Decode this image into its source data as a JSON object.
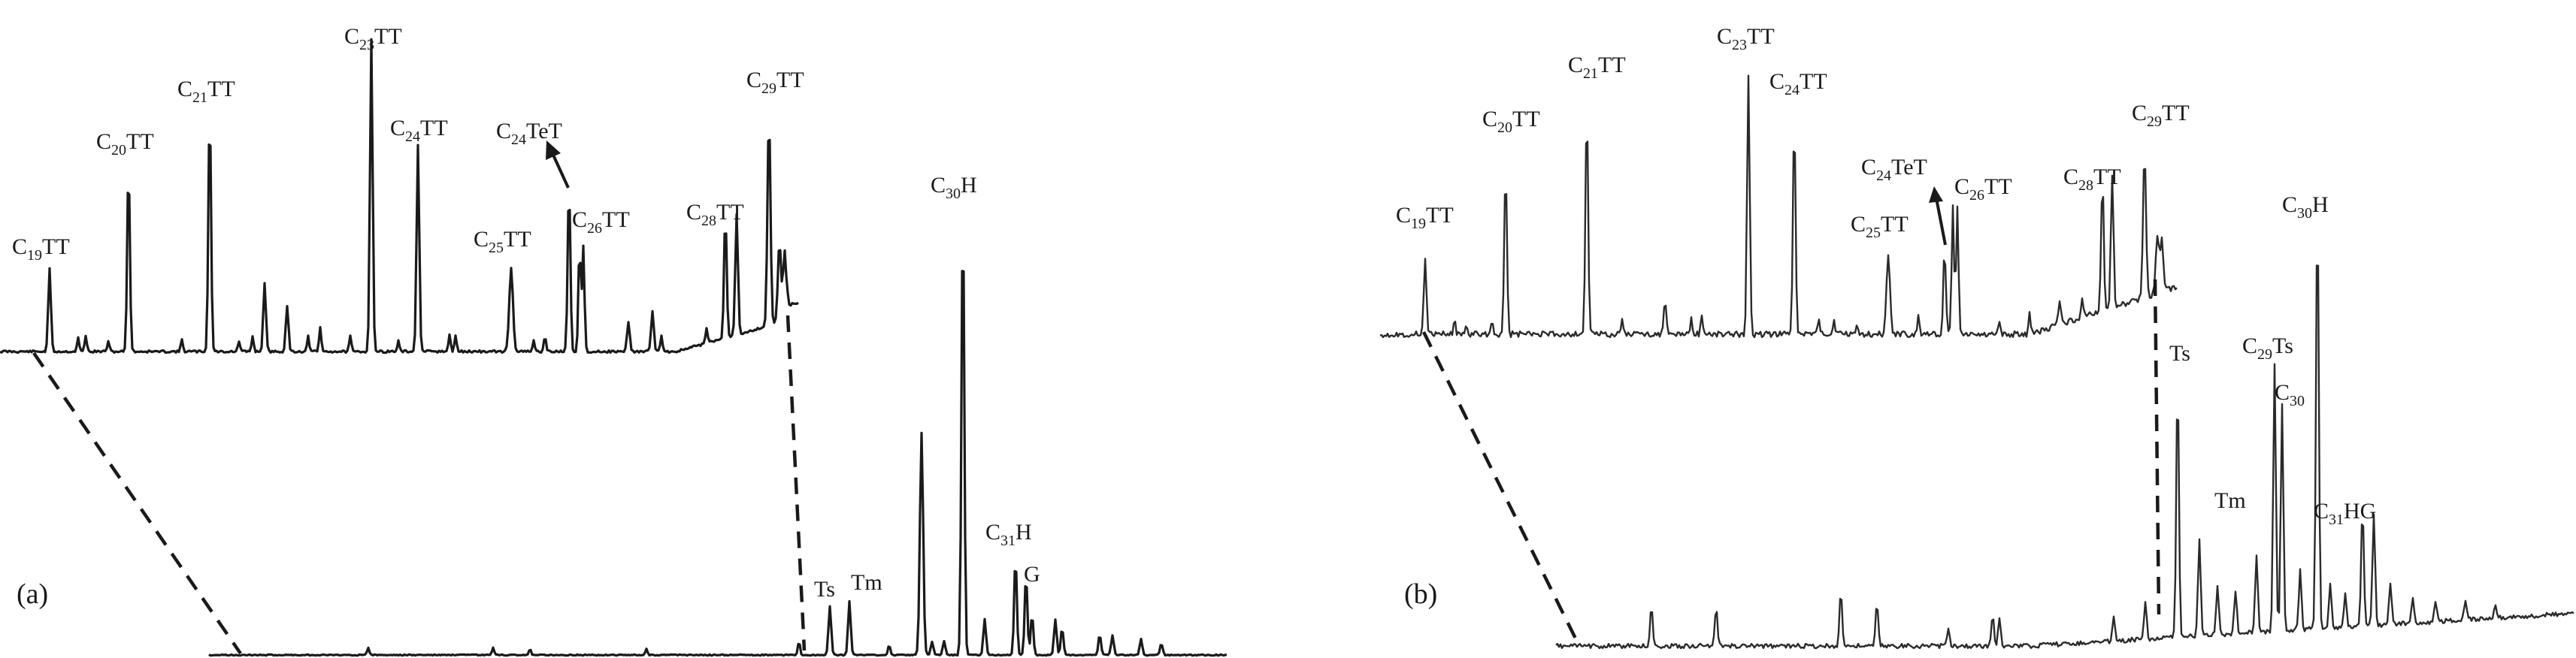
{
  "figure": {
    "panels": [
      {
        "id": "a",
        "label": "(a)",
        "inset_labels": [
          {
            "main": "C",
            "sub": "19",
            "tail": "TT"
          },
          {
            "main": "C",
            "sub": "20",
            "tail": "TT"
          },
          {
            "main": "C",
            "sub": "21",
            "tail": "TT"
          },
          {
            "main": "C",
            "sub": "23",
            "tail": "TT"
          },
          {
            "main": "C",
            "sub": "24",
            "tail": "TT"
          },
          {
            "main": "C",
            "sub": "24",
            "tail": "TeT"
          },
          {
            "main": "C",
            "sub": "25",
            "tail": "TT"
          },
          {
            "main": "C",
            "sub": "26",
            "tail": "TT"
          },
          {
            "main": "C",
            "sub": "28",
            "tail": "TT"
          },
          {
            "main": "C",
            "sub": "29",
            "tail": "TT"
          }
        ],
        "main_labels": [
          {
            "main": "C",
            "sub": "30",
            "tail": "H"
          },
          {
            "main": "C",
            "sub": "31",
            "tail": "H"
          },
          {
            "main": "",
            "sub": "",
            "tail": "Ts"
          },
          {
            "main": "",
            "sub": "",
            "tail": "Tm"
          },
          {
            "main": "",
            "sub": "",
            "tail": "G"
          }
        ]
      },
      {
        "id": "b",
        "label": "(b)",
        "inset_labels": [
          {
            "main": "C",
            "sub": "19",
            "tail": "TT"
          },
          {
            "main": "C",
            "sub": "20",
            "tail": "TT"
          },
          {
            "main": "C",
            "sub": "21",
            "tail": "TT"
          },
          {
            "main": "C",
            "sub": "23",
            "tail": "TT"
          },
          {
            "main": "C",
            "sub": "24",
            "tail": "TT"
          },
          {
            "main": "C",
            "sub": "24",
            "tail": "TeT"
          },
          {
            "main": "C",
            "sub": "25",
            "tail": "TT"
          },
          {
            "main": "C",
            "sub": "26",
            "tail": "TT"
          },
          {
            "main": "C",
            "sub": "28",
            "tail": "TT"
          },
          {
            "main": "C",
            "sub": "29",
            "tail": "TT"
          }
        ],
        "main_labels": [
          {
            "main": "",
            "sub": "",
            "tail": "Ts"
          },
          {
            "main": "C",
            "sub": "29",
            "tail": "Ts"
          },
          {
            "main": "C",
            "sub": "30",
            "tail": "H"
          },
          {
            "main": "C",
            "sub": "30",
            "tail": ""
          },
          {
            "main": "",
            "sub": "",
            "tail": "Tm"
          },
          {
            "main": "C",
            "sub": "31",
            "tail": "HG"
          }
        ]
      }
    ]
  },
  "chart_data": [
    {
      "type": "line",
      "title": "",
      "panel": "(a)",
      "xlabel": "",
      "ylabel": "",
      "grid": false,
      "axes_visible": false,
      "inset_relative_heights": [
        {
          "peak": "C19TT",
          "value": 0.26
        },
        {
          "peak": "C20TT",
          "value": 0.58
        },
        {
          "peak": "C21TT",
          "value": 0.76
        },
        {
          "peak": "C23TT",
          "value": 0.98
        },
        {
          "peak": "C24TT",
          "value": 0.65
        },
        {
          "peak": "C24TeT",
          "value": 0.52
        },
        {
          "peak": "C25TT",
          "value": 0.26
        },
        {
          "peak": "C26TT",
          "value": 0.33
        },
        {
          "peak": "C28TT",
          "value": 0.38
        },
        {
          "peak": "C29TT",
          "value": 0.66
        }
      ],
      "main_relative_heights": [
        {
          "peak": "Ts",
          "value": 0.11
        },
        {
          "peak": "Tm",
          "value": 0.12
        },
        {
          "peak": "C30H",
          "value": 1.0
        },
        {
          "peak": "C31H",
          "value": 0.22
        },
        {
          "peak": "G",
          "value": 0.18
        }
      ]
    },
    {
      "type": "line",
      "title": "",
      "panel": "(b)",
      "xlabel": "",
      "ylabel": "",
      "grid": false,
      "axes_visible": false,
      "inset_relative_heights": [
        {
          "peak": "C19TT",
          "value": 0.27
        },
        {
          "peak": "C20TT",
          "value": 0.57
        },
        {
          "peak": "C21TT",
          "value": 0.78
        },
        {
          "peak": "C23TT",
          "value": 0.9
        },
        {
          "peak": "C24TT",
          "value": 0.73
        },
        {
          "peak": "C24TeT",
          "value": 0.29
        },
        {
          "peak": "C25TT",
          "value": 0.27
        },
        {
          "peak": "C26TT",
          "value": 0.45
        },
        {
          "peak": "C28TT",
          "value": 0.45
        },
        {
          "peak": "C29TT",
          "value": 0.5
        }
      ],
      "main_relative_heights": [
        {
          "peak": "Ts",
          "value": 0.61
        },
        {
          "peak": "Tm",
          "value": 0.23
        },
        {
          "peak": "C29Ts",
          "value": 0.63
        },
        {
          "peak": "C30",
          "value": 0.54
        },
        {
          "peak": "C30H",
          "value": 1.0
        },
        {
          "peak": "C31HG",
          "value": 0.28
        }
      ]
    }
  ]
}
